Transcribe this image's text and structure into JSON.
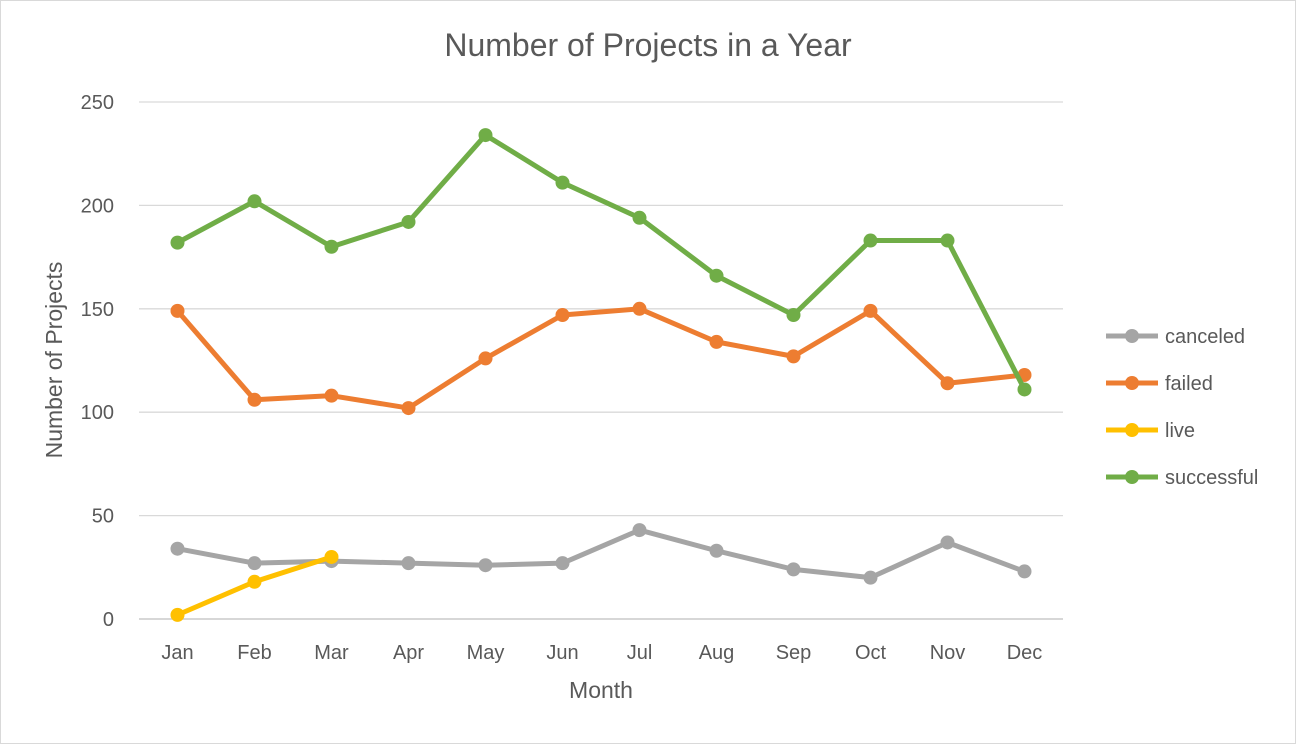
{
  "chart_data": {
    "type": "line",
    "title": "Number of Projects in a Year",
    "xlabel": "Month",
    "ylabel": "Number of Projects",
    "categories": [
      "Jan",
      "Feb",
      "Mar",
      "Apr",
      "May",
      "Jun",
      "Jul",
      "Aug",
      "Sep",
      "Oct",
      "Nov",
      "Dec"
    ],
    "ylim": [
      0,
      250
    ],
    "yticks": [
      0,
      50,
      100,
      150,
      200,
      250
    ],
    "grid": true,
    "legend_position": "right",
    "series": [
      {
        "name": "canceled",
        "color": "#a5a5a5",
        "values": [
          34,
          27,
          28,
          27,
          26,
          27,
          43,
          33,
          24,
          20,
          37,
          23
        ]
      },
      {
        "name": "failed",
        "color": "#ed7d31",
        "values": [
          149,
          106,
          108,
          102,
          126,
          147,
          150,
          134,
          127,
          149,
          114,
          118
        ]
      },
      {
        "name": "live",
        "color": "#ffc000",
        "values": [
          2,
          18,
          30,
          null,
          null,
          null,
          null,
          null,
          null,
          null,
          null,
          null
        ]
      },
      {
        "name": "successful",
        "color": "#70ad47",
        "values": [
          182,
          202,
          180,
          192,
          234,
          211,
          194,
          166,
          147,
          183,
          183,
          111
        ]
      }
    ]
  }
}
